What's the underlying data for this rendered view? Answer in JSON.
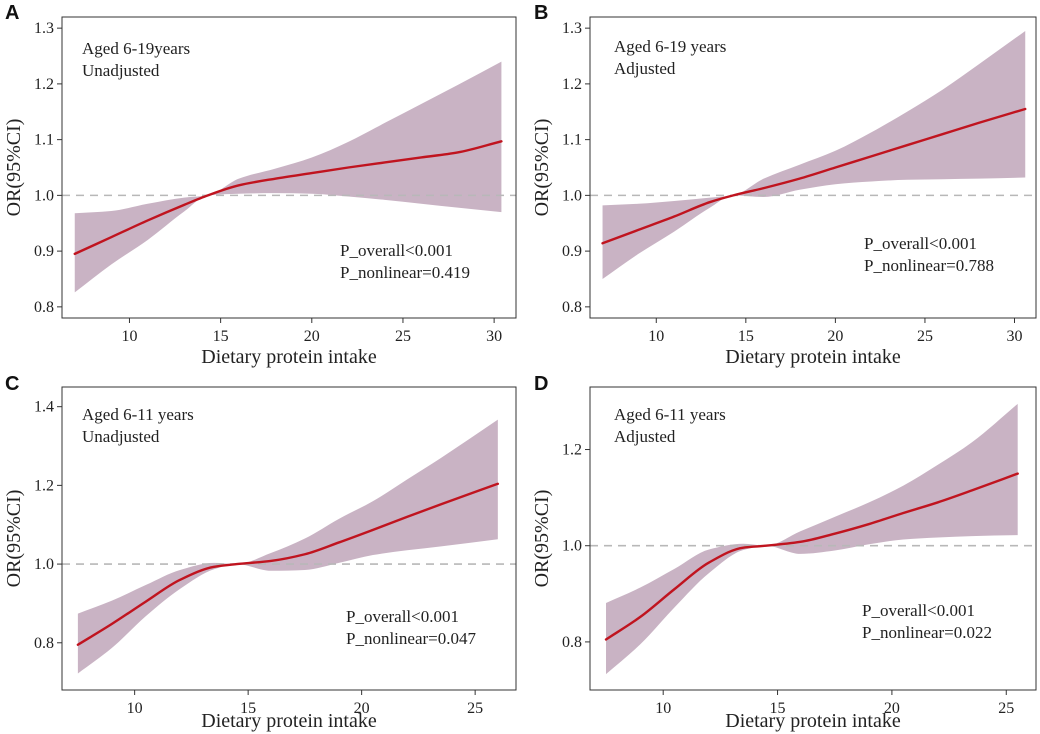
{
  "colors": {
    "line": "#c0141f",
    "band": "#c9b3c4",
    "frame": "#333333",
    "reference": "#b8b8b8",
    "text": "#222222",
    "background": "#ffffff"
  },
  "chart_data": [
    {
      "type": "line",
      "panel_label": "A",
      "annotation_lines": [
        "Aged 6-19years",
        "Unadjusted"
      ],
      "stats_lines": [
        "P_overall<0.001",
        "P_nonlinear=0.419"
      ],
      "xlabel": "Dietary protein intake",
      "ylabel": "OR(95%CI)",
      "xlim": [
        6.3,
        31.2
      ],
      "ylim": [
        0.78,
        1.32
      ],
      "xticks": [
        10,
        15,
        20,
        25,
        30
      ],
      "yticks": [
        0.8,
        0.9,
        1.0,
        1.1,
        1.2,
        1.3
      ],
      "ytick_labels": [
        "0.8",
        "0.9",
        "1.0",
        "1.1",
        "1.2",
        "1.3"
      ],
      "reference_y": 1.0,
      "x": [
        7,
        9,
        11,
        13,
        14.3,
        16,
        18,
        20,
        22,
        24,
        26,
        28,
        30.4
      ],
      "y": [
        0.895,
        0.925,
        0.955,
        0.983,
        1.0,
        1.018,
        1.03,
        1.04,
        1.05,
        1.059,
        1.068,
        1.077,
        1.097
      ],
      "ci_lower": [
        0.826,
        0.876,
        0.92,
        0.971,
        1.0,
        1.003,
        1.004,
        1.003,
        0.998,
        0.992,
        0.985,
        0.978,
        0.97
      ],
      "ci_upper": [
        0.968,
        0.972,
        0.985,
        0.996,
        1.0,
        1.03,
        1.048,
        1.068,
        1.096,
        1.13,
        1.164,
        1.198,
        1.24
      ]
    },
    {
      "type": "line",
      "panel_label": "B",
      "annotation_lines": [
        "Aged 6-19 years",
        "Adjusted"
      ],
      "stats_lines": [
        "P_overall<0.001",
        "P_nonlinear=0.788"
      ],
      "xlabel": "Dietary protein intake",
      "ylabel": "OR(95%CI)",
      "xlim": [
        6.3,
        31.2
      ],
      "ylim": [
        0.78,
        1.32
      ],
      "xticks": [
        10,
        15,
        20,
        25,
        30
      ],
      "yticks": [
        0.8,
        0.9,
        1.0,
        1.1,
        1.2,
        1.3
      ],
      "ytick_labels": [
        "0.8",
        "0.9",
        "1.0",
        "1.1",
        "1.2",
        "1.3"
      ],
      "reference_y": 1.0,
      "x": [
        7,
        9,
        11,
        13,
        14.3,
        16,
        18,
        20,
        22,
        24,
        26,
        28,
        30.6
      ],
      "y": [
        0.914,
        0.938,
        0.962,
        0.988,
        1.0,
        1.013,
        1.03,
        1.05,
        1.07,
        1.09,
        1.11,
        1.13,
        1.155
      ],
      "ci_lower": [
        0.85,
        0.895,
        0.935,
        0.978,
        1.0,
        0.997,
        1.01,
        1.02,
        1.025,
        1.028,
        1.029,
        1.03,
        1.032
      ],
      "ci_upper": [
        0.982,
        0.985,
        0.99,
        0.996,
        1.0,
        1.03,
        1.055,
        1.08,
        1.113,
        1.15,
        1.19,
        1.235,
        1.295
      ]
    },
    {
      "type": "line",
      "panel_label": "C",
      "annotation_lines": [
        "Aged 6-11 years",
        "Unadjusted"
      ],
      "stats_lines": [
        "P_overall<0.001",
        "P_nonlinear=0.047"
      ],
      "xlabel": "Dietary protein intake",
      "ylabel": "OR(95%CI)",
      "xlim": [
        6.8,
        26.8
      ],
      "ylim": [
        0.68,
        1.45
      ],
      "xticks": [
        10,
        15,
        20,
        25
      ],
      "yticks": [
        0.8,
        1.0,
        1.2,
        1.4
      ],
      "ytick_labels": [
        "0.8",
        "1.0",
        "1.2",
        "1.4"
      ],
      "reference_y": 1.0,
      "x": [
        7.5,
        9,
        10.5,
        12,
        13.5,
        14.5,
        16,
        17.5,
        19,
        20.5,
        22,
        23.5,
        26
      ],
      "y": [
        0.795,
        0.848,
        0.905,
        0.96,
        0.993,
        1.0,
        1.008,
        1.025,
        1.055,
        1.087,
        1.12,
        1.152,
        1.204
      ],
      "ci_lower": [
        0.722,
        0.787,
        0.868,
        0.937,
        0.987,
        1.0,
        0.983,
        0.985,
        1.003,
        1.023,
        1.035,
        1.045,
        1.063
      ],
      "ci_upper": [
        0.874,
        0.907,
        0.947,
        0.985,
        1.003,
        1.0,
        1.028,
        1.065,
        1.115,
        1.16,
        1.215,
        1.27,
        1.367
      ]
    },
    {
      "type": "line",
      "panel_label": "D",
      "annotation_lines": [
        "Aged 6-11 years",
        "Adjusted"
      ],
      "stats_lines": [
        "P_overall<0.001",
        "P_nonlinear=0.022"
      ],
      "xlabel": "Dietary protein intake",
      "ylabel": "OR(95%CI)",
      "xlim": [
        6.8,
        26.3
      ],
      "ylim": [
        0.7,
        1.33
      ],
      "xticks": [
        10,
        15,
        20,
        25
      ],
      "yticks": [
        0.8,
        1.0,
        1.2
      ],
      "ytick_labels": [
        "0.8",
        "1.0",
        "1.2"
      ],
      "reference_y": 1.0,
      "x": [
        7.5,
        9,
        10.5,
        12,
        13.5,
        14.5,
        16,
        17.5,
        19,
        20.5,
        22,
        23.5,
        25.5
      ],
      "y": [
        0.805,
        0.852,
        0.91,
        0.965,
        0.996,
        1.0,
        1.008,
        1.025,
        1.045,
        1.068,
        1.09,
        1.115,
        1.15
      ],
      "ci_lower": [
        0.733,
        0.795,
        0.872,
        0.943,
        0.991,
        1.0,
        0.983,
        0.99,
        1.003,
        1.013,
        1.017,
        1.02,
        1.022
      ],
      "ci_upper": [
        0.881,
        0.913,
        0.952,
        0.992,
        1.004,
        1.0,
        1.03,
        1.06,
        1.09,
        1.125,
        1.168,
        1.215,
        1.295
      ]
    }
  ]
}
